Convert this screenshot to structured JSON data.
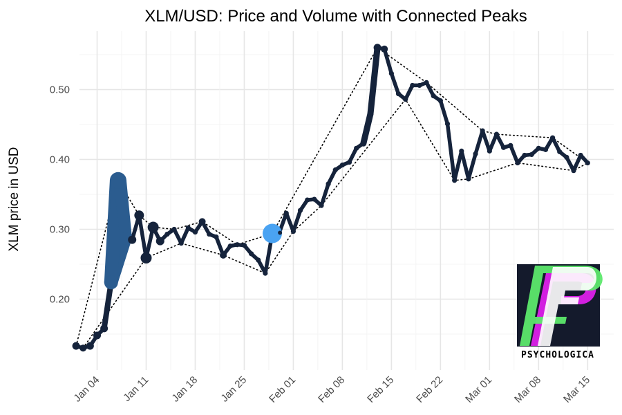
{
  "chart_data": {
    "type": "line",
    "title": "XLM/USD: Price and Volume with Connected Peaks",
    "xlabel": "",
    "ylabel": "XLM price in USD",
    "x_ticks": [
      "Jan 04",
      "Jan 11",
      "Jan 18",
      "Jan 25",
      "Feb 01",
      "Feb 08",
      "Feb 15",
      "Feb 22",
      "Mar 01",
      "Mar 08",
      "Mar 15"
    ],
    "y_ticks": [
      "0.20",
      "0.30",
      "0.40",
      "0.50"
    ],
    "ylim": [
      0.12,
      0.57
    ],
    "xlim": [
      "2020-12-31",
      "2021-03-16"
    ],
    "grid": true,
    "series": [
      {
        "kind": "price",
        "color": "#15233b",
        "points": [
          [
            "2021-01-01",
            0.133
          ],
          [
            "2021-01-02",
            0.13
          ],
          [
            "2021-01-03",
            0.133
          ],
          [
            "2021-01-04",
            0.148
          ],
          [
            "2021-01-05",
            0.158
          ],
          [
            "2021-01-06",
            0.224
          ],
          [
            "2021-01-07",
            0.37
          ],
          [
            "2021-01-08",
            0.287
          ],
          [
            "2021-01-09",
            0.285
          ],
          [
            "2021-01-10",
            0.32
          ],
          [
            "2021-01-11",
            0.259
          ],
          [
            "2021-01-12",
            0.303
          ],
          [
            "2021-01-13",
            0.283
          ],
          [
            "2021-01-14",
            0.293
          ],
          [
            "2021-01-15",
            0.3
          ],
          [
            "2021-01-16",
            0.28
          ],
          [
            "2021-01-17",
            0.302
          ],
          [
            "2021-01-18",
            0.296
          ],
          [
            "2021-01-19",
            0.311
          ],
          [
            "2021-01-20",
            0.293
          ],
          [
            "2021-01-21",
            0.289
          ],
          [
            "2021-01-22",
            0.263
          ],
          [
            "2021-01-23",
            0.276
          ],
          [
            "2021-01-24",
            0.278
          ],
          [
            "2021-01-25",
            0.277
          ],
          [
            "2021-01-26",
            0.265
          ],
          [
            "2021-01-27",
            0.256
          ],
          [
            "2021-01-28",
            0.237
          ],
          [
            "2021-01-29",
            0.294
          ],
          [
            "2021-01-30",
            0.295
          ],
          [
            "2021-01-31",
            0.323
          ],
          [
            "2021-02-01",
            0.297
          ],
          [
            "2021-02-02",
            0.327
          ],
          [
            "2021-02-03",
            0.342
          ],
          [
            "2021-02-04",
            0.343
          ],
          [
            "2021-02-05",
            0.334
          ],
          [
            "2021-02-06",
            0.365
          ],
          [
            "2021-02-07",
            0.385
          ],
          [
            "2021-02-08",
            0.392
          ],
          [
            "2021-02-09",
            0.396
          ],
          [
            "2021-02-10",
            0.416
          ],
          [
            "2021-02-11",
            0.423
          ],
          [
            "2021-02-12",
            0.465
          ],
          [
            "2021-02-13",
            0.56
          ],
          [
            "2021-02-14",
            0.558
          ],
          [
            "2021-02-15",
            0.523
          ],
          [
            "2021-02-16",
            0.494
          ],
          [
            "2021-02-17",
            0.486
          ],
          [
            "2021-02-18",
            0.506
          ],
          [
            "2021-02-19",
            0.506
          ],
          [
            "2021-02-20",
            0.51
          ],
          [
            "2021-02-21",
            0.491
          ],
          [
            "2021-02-22",
            0.484
          ],
          [
            "2021-02-23",
            0.451
          ],
          [
            "2021-02-24",
            0.37
          ],
          [
            "2021-02-25",
            0.412
          ],
          [
            "2021-02-26",
            0.372
          ],
          [
            "2021-02-27",
            0.408
          ],
          [
            "2021-02-28",
            0.441
          ],
          [
            "2021-03-01",
            0.412
          ],
          [
            "2021-03-02",
            0.436
          ],
          [
            "2021-03-03",
            0.417
          ],
          [
            "2021-03-04",
            0.42
          ],
          [
            "2021-03-05",
            0.395
          ],
          [
            "2021-03-06",
            0.406
          ],
          [
            "2021-03-07",
            0.407
          ],
          [
            "2021-03-08",
            0.416
          ],
          [
            "2021-03-09",
            0.414
          ],
          [
            "2021-03-10",
            0.431
          ],
          [
            "2021-03-11",
            0.411
          ],
          [
            "2021-03-12",
            0.403
          ],
          [
            "2021-03-13",
            0.384
          ],
          [
            "2021-03-14",
            0.406
          ],
          [
            "2021-03-15",
            0.395
          ]
        ]
      },
      {
        "kind": "volume-highlight",
        "colors": [
          "#2b5c8f",
          "#3e8fd8",
          "#4aa3f2"
        ],
        "note": "wide segments drawn where trading volume was highest",
        "segments": [
          {
            "color": "#2b5c8f",
            "points": [
              [
                "2021-01-06",
                0.224
              ],
              [
                "2021-01-07",
                0.37
              ],
              [
                "2021-01-08",
                0.287
              ]
            ]
          },
          {
            "color": "#4aa3f2",
            "points": [
              [
                "2021-01-29",
                0.294
              ]
            ]
          }
        ]
      },
      {
        "kind": "connected-peaks",
        "style": "dotted",
        "color": "#000000",
        "points": [
          [
            "2021-01-01",
            0.133
          ],
          [
            "2021-01-07",
            0.37
          ],
          [
            "2021-01-10",
            0.32
          ],
          [
            "2021-01-12",
            0.303
          ],
          [
            "2021-01-15",
            0.3
          ],
          [
            "2021-01-19",
            0.311
          ],
          [
            "2021-01-24",
            0.278
          ],
          [
            "2021-01-29",
            0.294
          ],
          [
            "2021-02-13",
            0.56
          ],
          [
            "2021-02-20",
            0.51
          ],
          [
            "2021-02-28",
            0.441
          ],
          [
            "2021-03-02",
            0.436
          ],
          [
            "2021-03-10",
            0.431
          ],
          [
            "2021-03-15",
            0.395
          ]
        ]
      },
      {
        "kind": "connected-troughs",
        "style": "dotted",
        "color": "#000000",
        "points": [
          [
            "2021-01-02",
            0.13
          ],
          [
            "2021-01-11",
            0.259
          ],
          [
            "2021-01-16",
            0.28
          ],
          [
            "2021-01-22",
            0.263
          ],
          [
            "2021-01-28",
            0.237
          ],
          [
            "2021-02-01",
            0.297
          ],
          [
            "2021-02-05",
            0.334
          ],
          [
            "2021-02-17",
            0.486
          ],
          [
            "2021-02-24",
            0.37
          ],
          [
            "2021-02-26",
            0.372
          ],
          [
            "2021-03-05",
            0.395
          ],
          [
            "2021-03-13",
            0.384
          ],
          [
            "2021-03-15",
            0.395
          ]
        ]
      }
    ]
  },
  "logo": {
    "text": "PSYCHOLOGICA",
    "colors": {
      "background": "#141a2c",
      "magenta": "#d21fe0",
      "green": "#5ce86c",
      "white": "#ffffff"
    }
  }
}
